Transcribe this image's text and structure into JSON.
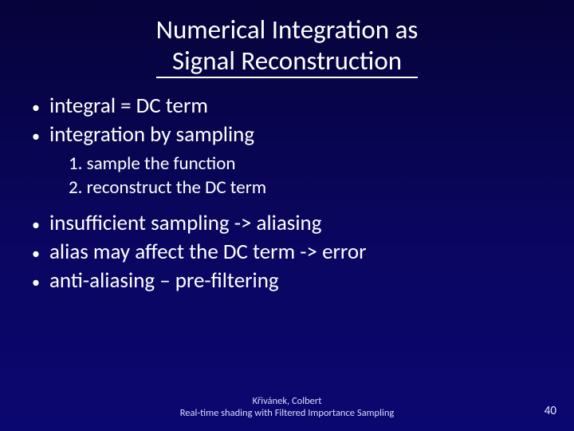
{
  "colors": {
    "background_top": "#06033a",
    "background_bottom": "#0b0770",
    "text": "#ffffff",
    "footer_text": "#d9dcff",
    "title_underline": "#ffffff"
  },
  "typography": {
    "title_fontsize_pt": 33,
    "bullet_fontsize_pt": 27,
    "sub_fontsize_pt": 23,
    "footer_fontsize_pt": 12.5,
    "pagenum_fontsize_pt": 15,
    "font_family": "Calibri"
  },
  "title": {
    "line1": "Numerical Integration as",
    "line2": "Signal Reconstruction"
  },
  "bullets": {
    "b1": "integral = DC term",
    "b2": "integration by sampling",
    "sub1": "1. sample the function",
    "sub2": "2. reconstruct the DC term",
    "b3": "insufficient sampling -> aliasing",
    "b4": "alias may affect the DC term -> error",
    "b5": "anti-aliasing – pre-filtering"
  },
  "footer": {
    "line1": "Křivánek, Colbert",
    "line2": "Real-time shading with Filtered Importance Sampling"
  },
  "page_number": "40"
}
